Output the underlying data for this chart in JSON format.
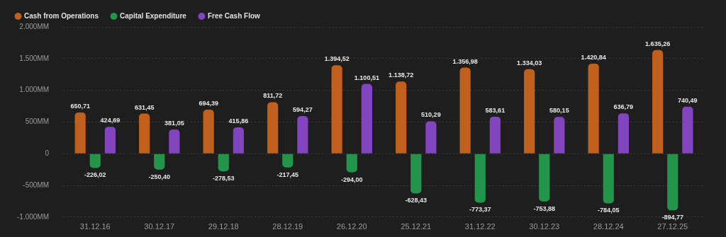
{
  "chart_data": {
    "type": "bar",
    "categories": [
      "31.12.16",
      "30.12.17",
      "29.12.18",
      "28.12.19",
      "26.12.20",
      "25.12.21",
      "31.12.22",
      "30.12.23",
      "28.12.24",
      "27.12.25"
    ],
    "series": [
      {
        "name": "Cash from Operations",
        "color": "#c0601c",
        "values": [
          650.71,
          631.45,
          694.39,
          811.72,
          1394.52,
          1138.72,
          1356.98,
          1334.03,
          1420.84,
          1635.26
        ],
        "value_labels": [
          "650,71",
          "631,45",
          "694,39",
          "811,72",
          "1.394,52",
          "1.138,72",
          "1.356,98",
          "1.334,03",
          "1.420,84",
          "1.635,26"
        ]
      },
      {
        "name": "Capital Expenditure",
        "color": "#23954a",
        "values": [
          -226.02,
          -250.4,
          -278.53,
          -217.45,
          -294.0,
          -628.43,
          -773.37,
          -753.88,
          -784.05,
          -894.77
        ],
        "value_labels": [
          "-226,02",
          "-250,40",
          "-278,53",
          "-217,45",
          "-294,00",
          "-628,43",
          "-773,37",
          "-753,88",
          "-784,05",
          "-894,77"
        ]
      },
      {
        "name": "Free Cash Flow",
        "color": "#8344c0",
        "values": [
          424.69,
          381.05,
          415.86,
          594.27,
          1100.51,
          510.29,
          583.61,
          580.15,
          636.79,
          740.49
        ],
        "value_labels": [
          "424,69",
          "381,05",
          "415,86",
          "594,27",
          "1.100,51",
          "510,29",
          "583,61",
          "580,15",
          "636,79",
          "740,49"
        ]
      }
    ],
    "ylim": [
      -1000,
      2000
    ],
    "yticks": [
      {
        "value": -1000,
        "label": "-1.000MM"
      },
      {
        "value": -500,
        "label": "-500MM"
      },
      0,
      {
        "value": 500,
        "label": "500MM"
      },
      {
        "value": 1000,
        "label": "1.000MM"
      },
      {
        "value": 1500,
        "label": "1.500MM"
      },
      {
        "value": 2000,
        "label": "2.000MM"
      }
    ],
    "grid": "y",
    "legend": "top left"
  }
}
